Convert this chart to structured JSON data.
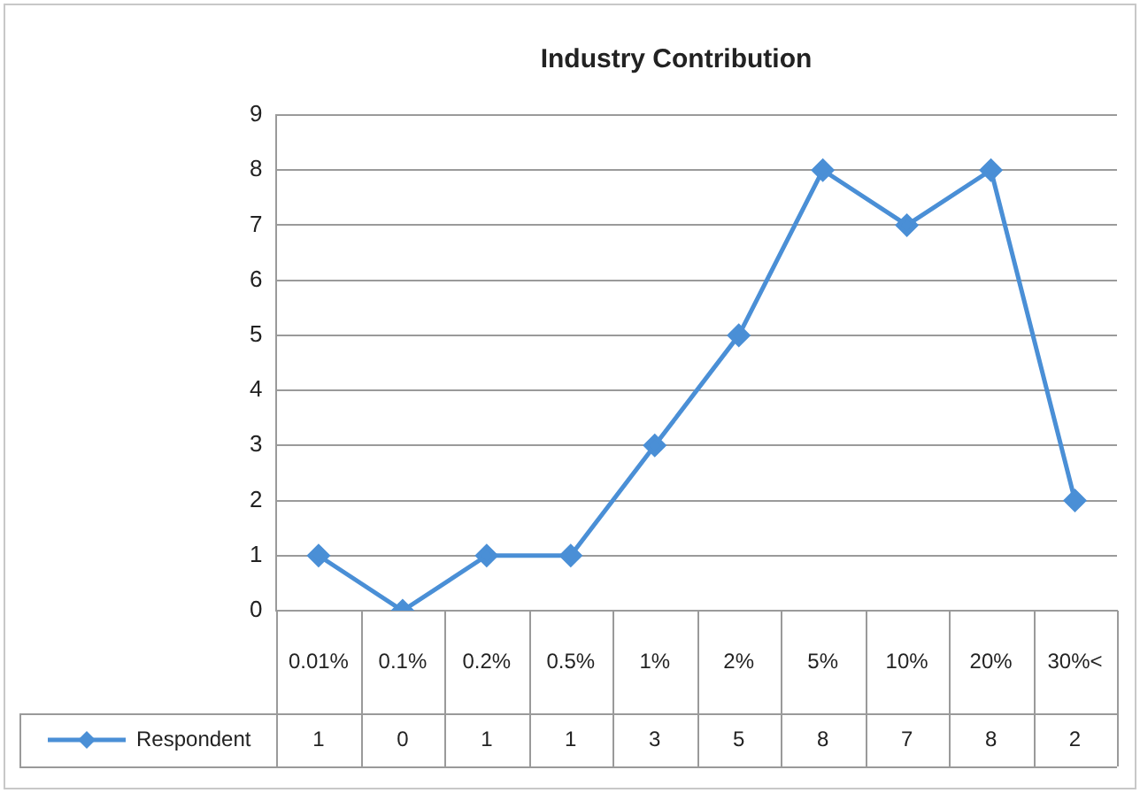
{
  "chart_data": {
    "type": "line",
    "title": "Industry Contribution",
    "categories": [
      "0.01%",
      "0.1%",
      "0.2%",
      "0.5%",
      "1%",
      "2%",
      "5%",
      "10%",
      "20%",
      "30%<"
    ],
    "series": [
      {
        "name": "Respondent",
        "color": "#4a8fd6",
        "values": [
          1,
          0,
          1,
          1,
          3,
          5,
          8,
          7,
          8,
          2
        ]
      }
    ],
    "ylim": [
      0,
      9
    ],
    "yticks": [
      0,
      1,
      2,
      3,
      4,
      5,
      6,
      7,
      8,
      9
    ],
    "grid": "y",
    "marker": "diamond",
    "line_style": "solid",
    "data_labels": true,
    "legend": "bottom"
  }
}
